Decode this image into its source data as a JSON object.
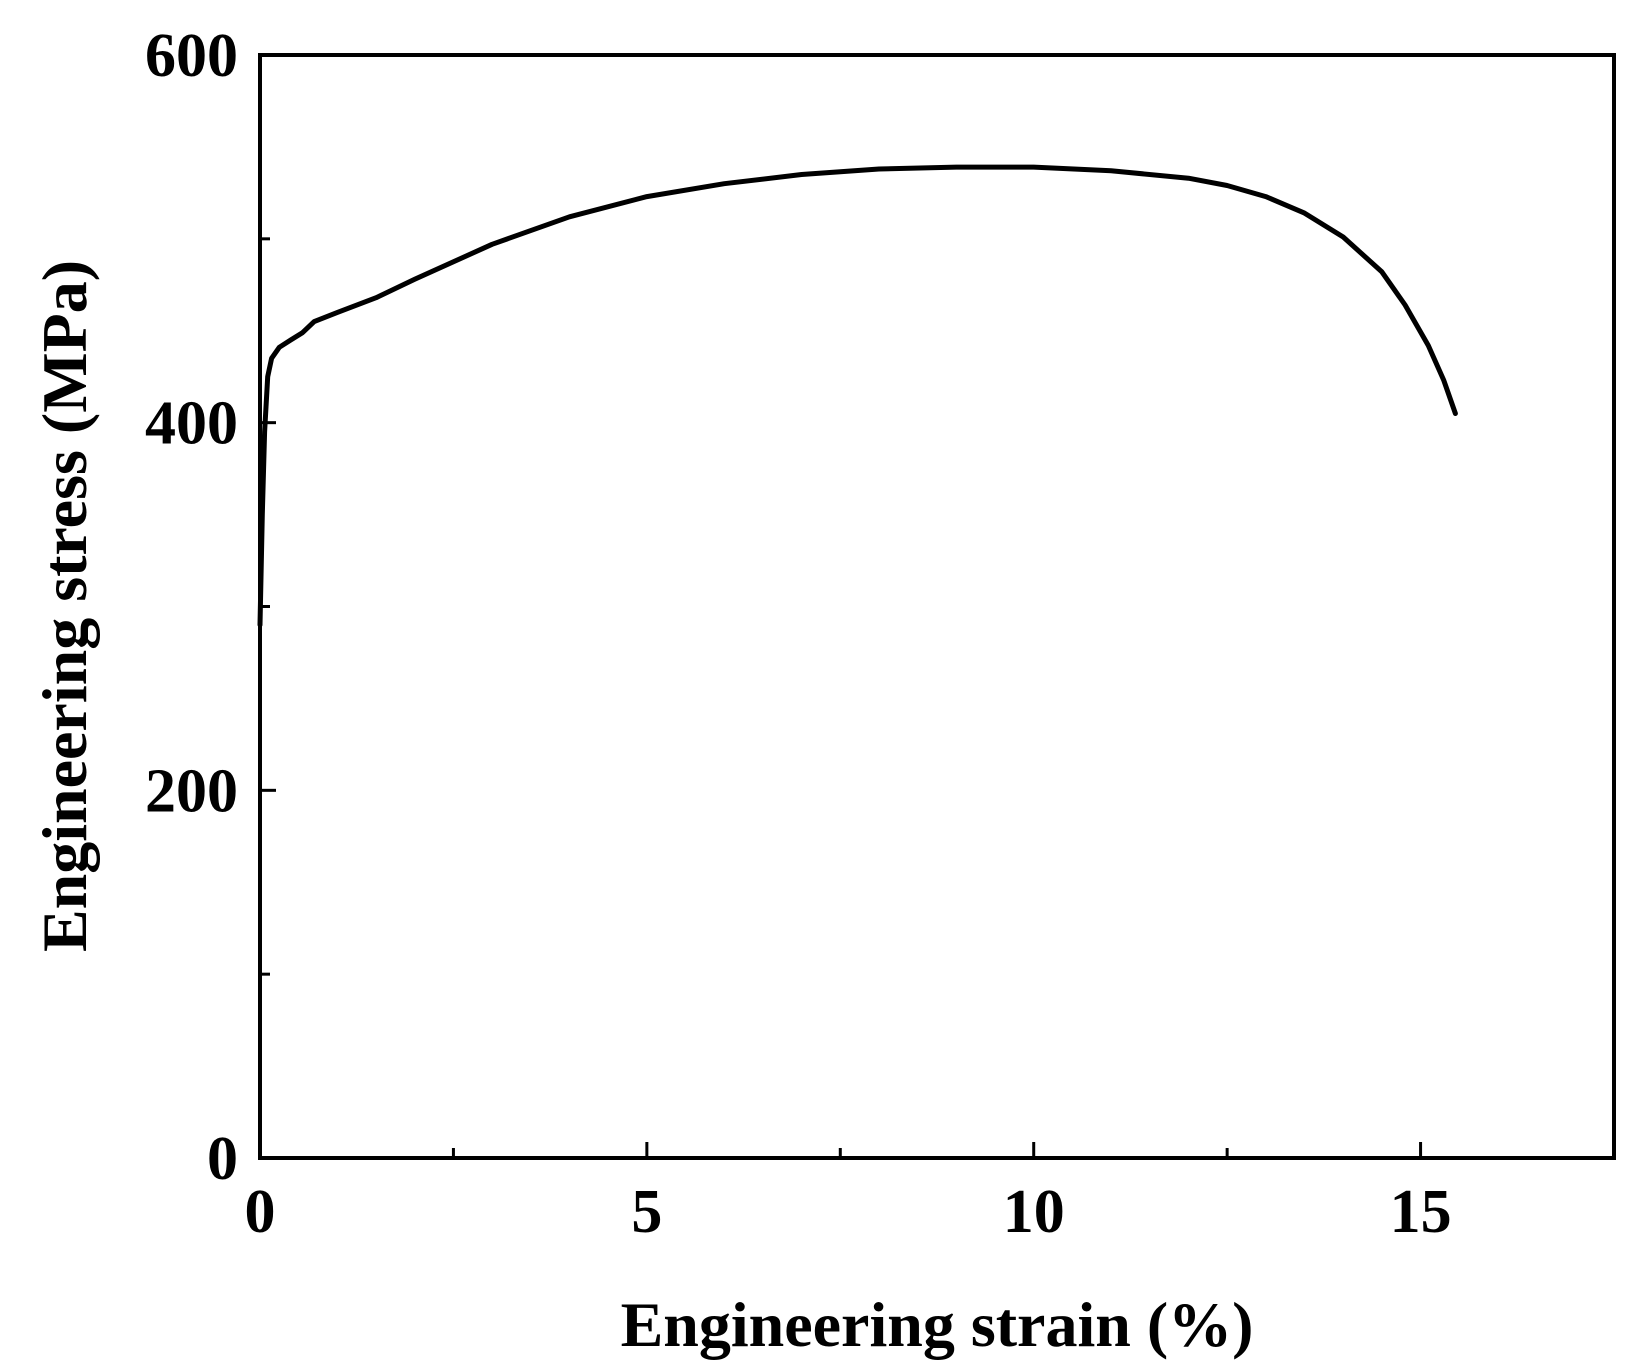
{
  "chart_data": {
    "type": "line",
    "title": "",
    "xlabel": "Engineering strain (%)",
    "ylabel": "Engineering stress (MPa)",
    "xlim": [
      0,
      17.5
    ],
    "ylim": [
      0,
      600
    ],
    "x_ticks": [
      0,
      5,
      10,
      15
    ],
    "x_minor_ticks": [
      2.5,
      7.5,
      12.5
    ],
    "y_ticks": [
      0,
      200,
      400,
      600
    ],
    "y_minor_ticks": [
      100,
      300,
      500
    ],
    "grid": false,
    "legend": "none",
    "series": [
      {
        "color": "#000000",
        "points": [
          [
            0.0,
            290
          ],
          [
            0.03,
            350
          ],
          [
            0.06,
            395
          ],
          [
            0.1,
            425
          ],
          [
            0.15,
            435
          ],
          [
            0.25,
            441
          ],
          [
            0.4,
            445
          ],
          [
            0.55,
            449
          ],
          [
            0.7,
            455
          ],
          [
            1.0,
            460
          ],
          [
            1.5,
            468
          ],
          [
            2.0,
            478
          ],
          [
            3.0,
            497
          ],
          [
            4.0,
            512
          ],
          [
            5.0,
            523
          ],
          [
            6.0,
            530
          ],
          [
            7.0,
            535
          ],
          [
            8.0,
            538
          ],
          [
            9.0,
            539
          ],
          [
            10.0,
            539
          ],
          [
            11.0,
            537
          ],
          [
            12.0,
            533
          ],
          [
            12.5,
            529
          ],
          [
            13.0,
            523
          ],
          [
            13.5,
            514
          ],
          [
            14.0,
            501
          ],
          [
            14.5,
            482
          ],
          [
            14.8,
            464
          ],
          [
            15.1,
            442
          ],
          [
            15.3,
            423
          ],
          [
            15.45,
            405
          ]
        ]
      }
    ]
  }
}
